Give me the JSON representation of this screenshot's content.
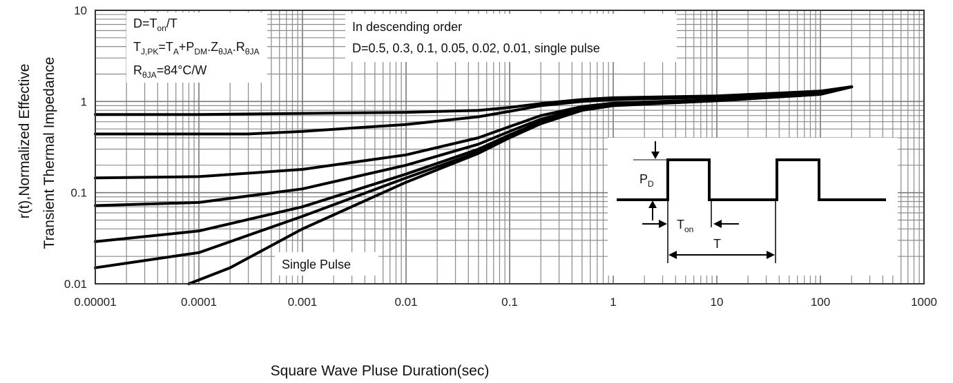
{
  "chart_data": {
    "type": "line",
    "xscale": "log",
    "yscale": "log",
    "xlim": [
      1e-05,
      1000
    ],
    "ylim": [
      0.01,
      10
    ],
    "xlabel": "Square Wave Pluse Duration(sec)",
    "ylabel_line1": "r(t),Normalized Effective",
    "ylabel_line2": "Transient Thermal Impedance",
    "x_ticks": [
      "0.00001",
      "0.0001",
      "0.001",
      "0.01",
      "0.1",
      "1",
      "10",
      "100",
      "1000"
    ],
    "y_ticks": [
      "0.01",
      "0.1",
      "1",
      "10"
    ],
    "grid": true,
    "annotations": {
      "left_box": [
        "D=T_on/T",
        "T_J,PK=T_A+P_DM.Z_θJA.R_θJA",
        "R_θJA=84°C/W"
      ],
      "order_line1": "In descending order",
      "order_line2": "D=0.5, 0.3, 0.1, 0.05, 0.02, 0.01, single pulse",
      "single_pulse_label": "Single Pulse",
      "inset_labels": [
        "P_D",
        "T_on",
        "T"
      ]
    },
    "series": [
      {
        "x": [
          1e-05,
          0.0001,
          0.001,
          0.01,
          0.05,
          0.1,
          0.2,
          0.5,
          1,
          10,
          100,
          200
        ],
        "y": [
          0.72,
          0.72,
          0.74,
          0.76,
          0.8,
          0.86,
          0.95,
          1.05,
          1.1,
          1.15,
          1.3,
          1.45
        ]
      },
      {
        "x": [
          1e-05,
          0.0001,
          0.0003,
          0.001,
          0.01,
          0.05,
          0.1,
          0.2,
          0.5,
          1,
          10,
          100,
          200
        ],
        "y": [
          0.44,
          0.44,
          0.44,
          0.47,
          0.56,
          0.68,
          0.78,
          0.9,
          1.0,
          1.05,
          1.12,
          1.3,
          1.45
        ]
      },
      {
        "x": [
          1e-05,
          0.0001,
          0.001,
          0.01,
          0.05,
          0.1,
          0.2,
          0.5,
          1,
          10,
          100,
          200
        ],
        "y": [
          0.145,
          0.15,
          0.18,
          0.26,
          0.4,
          0.53,
          0.7,
          0.88,
          0.96,
          1.05,
          1.25,
          1.45
        ]
      },
      {
        "x": [
          1e-05,
          0.0001,
          0.001,
          0.01,
          0.05,
          0.1,
          0.2,
          0.5,
          1,
          10,
          100,
          200
        ],
        "y": [
          0.072,
          0.078,
          0.11,
          0.2,
          0.34,
          0.47,
          0.64,
          0.85,
          0.94,
          1.04,
          1.22,
          1.45
        ]
      },
      {
        "x": [
          1e-05,
          0.0001,
          0.001,
          0.01,
          0.05,
          0.1,
          0.2,
          0.5,
          1,
          10,
          100,
          200
        ],
        "y": [
          0.029,
          0.038,
          0.07,
          0.16,
          0.3,
          0.43,
          0.6,
          0.82,
          0.92,
          1.03,
          1.2,
          1.45
        ]
      },
      {
        "x": [
          1e-05,
          0.0001,
          0.001,
          0.01,
          0.05,
          0.1,
          0.2,
          0.5,
          1,
          10,
          100,
          200
        ],
        "y": [
          0.015,
          0.022,
          0.055,
          0.145,
          0.28,
          0.41,
          0.58,
          0.81,
          0.91,
          1.02,
          1.2,
          1.45
        ]
      },
      {
        "x": [
          8e-05,
          0.0002,
          0.001,
          0.01,
          0.05,
          0.1,
          0.2,
          0.5,
          1,
          10,
          100,
          200
        ],
        "y": [
          0.01,
          0.015,
          0.04,
          0.13,
          0.27,
          0.4,
          0.57,
          0.8,
          0.9,
          1.02,
          1.2,
          1.45
        ]
      }
    ]
  }
}
